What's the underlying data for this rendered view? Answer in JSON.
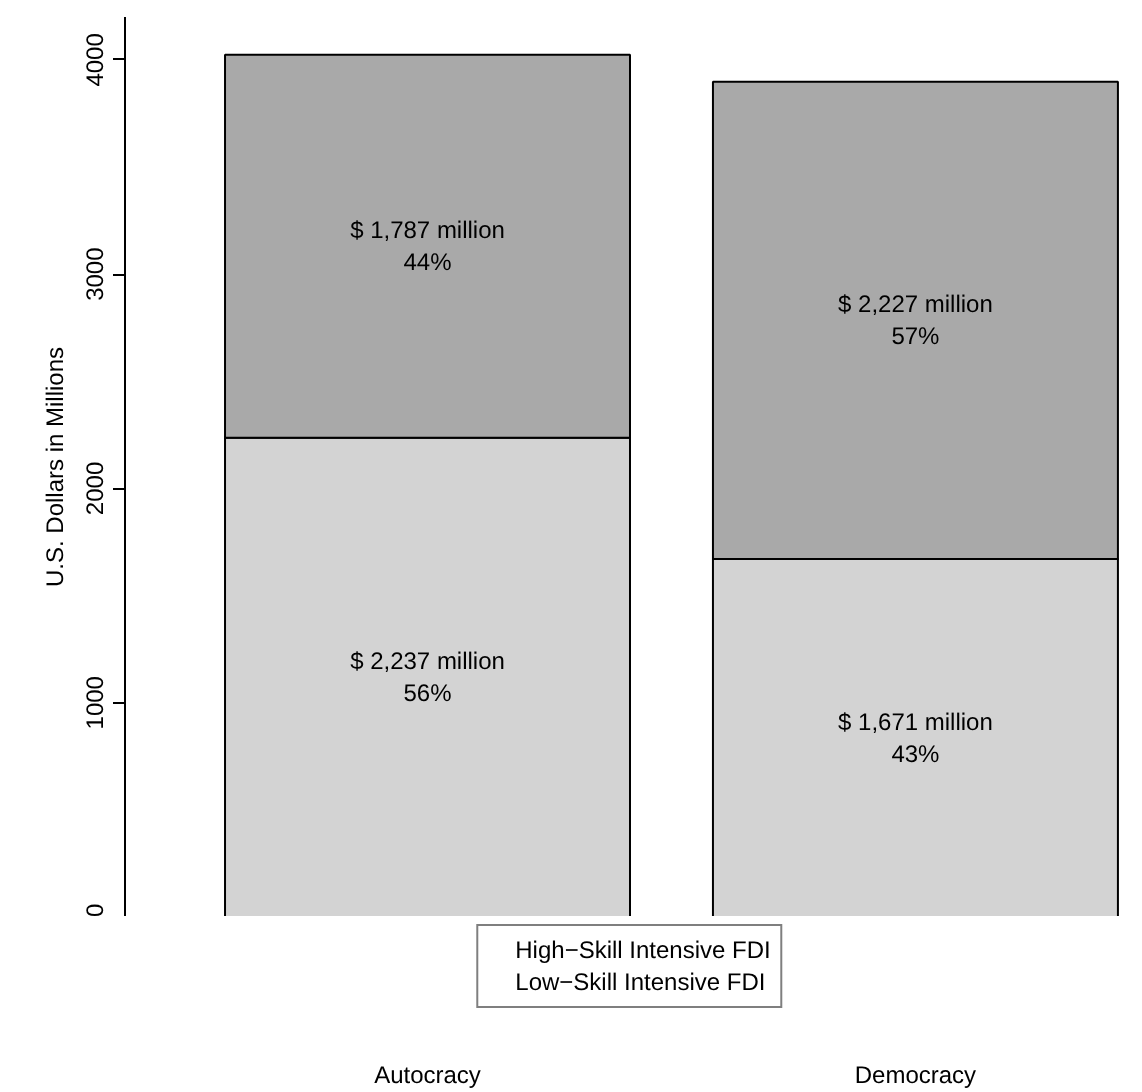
{
  "chart_data": {
    "type": "bar",
    "stacked": true,
    "ylabel": "U.S. Dollars in Millions",
    "categories": [
      "Autocracy",
      "Democracy"
    ],
    "series": [
      {
        "name": "High−Skill Intensive FDI",
        "color": "#d3d3d3",
        "values": [
          2237,
          1671
        ],
        "value_labels": [
          "$ 2,237 million",
          "$ 1,671 million"
        ]
      },
      {
        "name": "Low−Skill Intensive FDI",
        "color": "#a9a9a9",
        "values": [
          1787,
          2227
        ],
        "value_labels": [
          "$ 1,787 million",
          "$ 2,227 million"
        ]
      }
    ],
    "annotations": [
      "56%",
      "43%",
      "44%",
      "57%"
    ],
    "ylim": [
      0,
      4200
    ],
    "yticks": [
      0,
      1000,
      2000,
      3000,
      4000
    ],
    "grid": false,
    "legend": "bottom"
  }
}
